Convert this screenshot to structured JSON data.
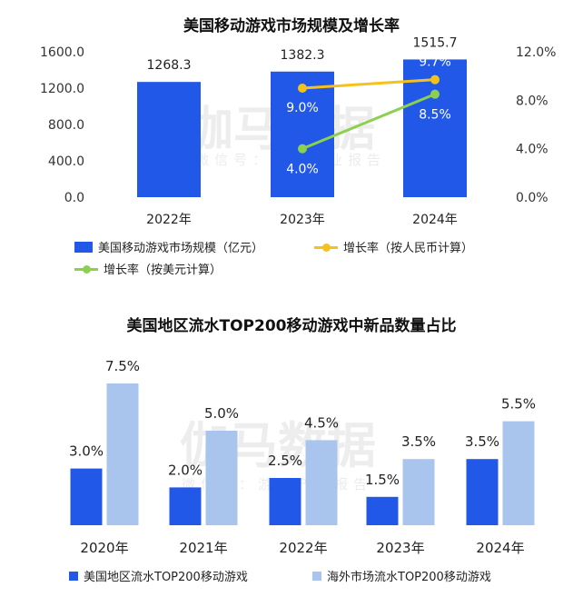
{
  "watermark": {
    "main": "伽马数据",
    "sub": "微信号：游戏产业报告"
  },
  "colors": {
    "market_bar": "#2158e8",
    "line_rmb": "#f5c21b",
    "line_usd": "#8bd14e",
    "us_bar": "#2158e8",
    "overseas_bar": "#a9c5ee",
    "axis_text": "#333333"
  },
  "chart_data": [
    {
      "type": "bar+line",
      "title": "美国移动游戏市场规模及增长率",
      "categories": [
        "2022年",
        "2023年",
        "2024年"
      ],
      "left_axis": {
        "ylim": [
          0,
          1600
        ],
        "ticks": [
          "0.0",
          "400.0",
          "800.0",
          "1200.0",
          "1600.0"
        ]
      },
      "right_axis": {
        "ylim": [
          0,
          12
        ],
        "ticks": [
          "0.0%",
          "4.0%",
          "8.0%",
          "12.0%"
        ]
      },
      "series": [
        {
          "name": "美国移动游戏市场规模（亿元）",
          "kind": "bar",
          "axis": "left",
          "values": [
            1268.3,
            1382.3,
            1515.7
          ],
          "labels": [
            "1268.3",
            "1382.3",
            "1515.7"
          ]
        },
        {
          "name": "增长率（按人民币计算）",
          "kind": "line",
          "axis": "right",
          "values": [
            null,
            9.0,
            9.7
          ],
          "labels": [
            "",
            "9.0%",
            "9.7%"
          ]
        },
        {
          "name": "增长率（按美元计算）",
          "kind": "line",
          "axis": "right",
          "values": [
            null,
            4.0,
            8.5
          ],
          "labels": [
            "",
            "4.0%",
            "8.5%"
          ]
        }
      ],
      "legend": [
        "美国移动游戏市场规模（亿元）",
        "增长率（按人民币计算）",
        "增长率（按美元计算）"
      ]
    },
    {
      "type": "bar",
      "title": "美国地区流水TOP200移动游戏中新品数量占比",
      "categories": [
        "2020年",
        "2021年",
        "2022年",
        "2023年",
        "2024年"
      ],
      "ylim": [
        0,
        8.5
      ],
      "series": [
        {
          "name": "美国地区流水TOP200移动游戏",
          "values": [
            3.0,
            2.0,
            2.5,
            1.5,
            3.5
          ],
          "labels": [
            "3.0%",
            "2.0%",
            "2.5%",
            "1.5%",
            "3.5%"
          ]
        },
        {
          "name": "海外市场流水TOP200移动游戏",
          "values": [
            7.5,
            5.0,
            4.5,
            3.5,
            5.5
          ],
          "labels": [
            "7.5%",
            "5.0%",
            "4.5%",
            "3.5%",
            "5.5%"
          ]
        }
      ],
      "legend": [
        "美国地区流水TOP200移动游戏",
        "海外市场流水TOP200移动游戏"
      ]
    }
  ]
}
